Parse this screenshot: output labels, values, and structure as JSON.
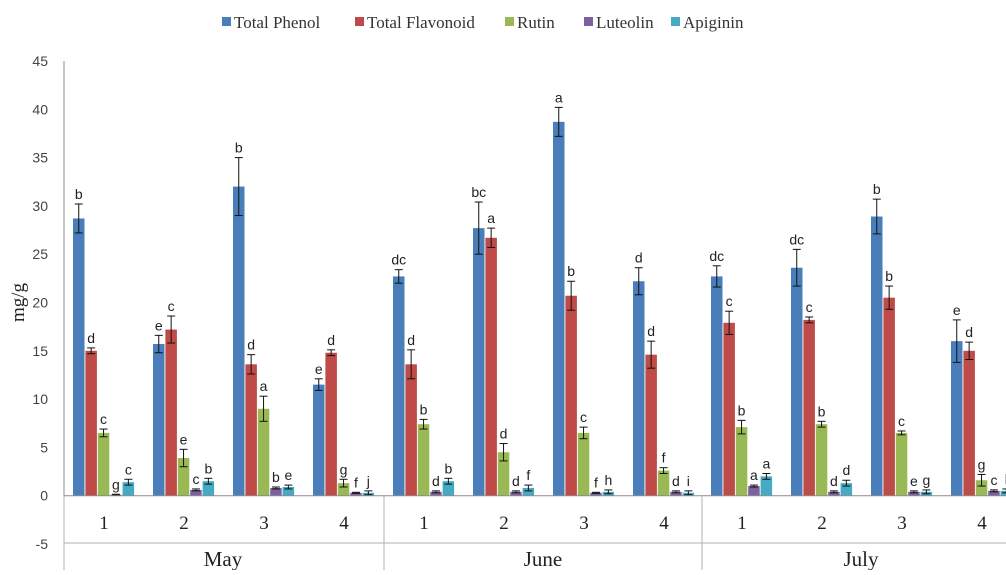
{
  "chart_data": {
    "type": "bar",
    "ylabel": "mg/g",
    "ylim": [
      -5,
      45
    ],
    "yticks": [
      -5,
      0,
      5,
      10,
      15,
      20,
      25,
      30,
      35,
      40,
      45
    ],
    "grid": false,
    "legend_position": "top",
    "groups": [
      {
        "label": "May",
        "categories": [
          "1",
          "2",
          "3",
          "4"
        ]
      },
      {
        "label": "June",
        "categories": [
          "1",
          "2",
          "3",
          "4"
        ]
      },
      {
        "label": "July",
        "categories": [
          "1",
          "2",
          "3",
          "4"
        ]
      }
    ],
    "series": [
      {
        "name": "Total Phenol",
        "color": "#4a7ebb",
        "values": [
          28.7,
          15.7,
          32.0,
          11.5,
          22.7,
          27.7,
          38.7,
          22.2,
          22.7,
          23.6,
          28.9,
          16.0
        ],
        "errors": [
          1.5,
          0.9,
          3.0,
          0.6,
          0.7,
          2.7,
          1.5,
          1.4,
          1.1,
          1.9,
          1.8,
          2.2
        ],
        "letters": [
          "b",
          "e",
          "b",
          "e",
          "dc",
          "bc",
          "a",
          "d",
          "dc",
          "dc",
          "b",
          "e"
        ]
      },
      {
        "name": "Total Flavonoid",
        "color": "#be4b48",
        "values": [
          15.0,
          17.2,
          13.6,
          14.8,
          13.6,
          26.7,
          20.7,
          14.6,
          17.9,
          18.2,
          20.5,
          15.0
        ],
        "errors": [
          0.3,
          1.4,
          1.0,
          0.3,
          1.5,
          1.0,
          1.5,
          1.4,
          1.2,
          0.3,
          1.2,
          0.9
        ],
        "letters": [
          "d",
          "c",
          "d",
          "d",
          "d",
          "a",
          "b",
          "d",
          "c",
          "c",
          "b",
          "d"
        ]
      },
      {
        "name": "Rutin",
        "color": "#98b954",
        "values": [
          6.5,
          3.9,
          9.0,
          1.3,
          7.4,
          4.5,
          6.5,
          2.6,
          7.1,
          7.4,
          6.5,
          1.6
        ],
        "errors": [
          0.4,
          0.9,
          1.3,
          0.4,
          0.5,
          0.9,
          0.6,
          0.3,
          0.7,
          0.3,
          0.2,
          0.6
        ],
        "letters": [
          "c",
          "e",
          "a",
          "g",
          "b",
          "d",
          "c",
          "f",
          "b",
          "b",
          "c",
          "g"
        ]
      },
      {
        "name": "Luteolin",
        "color": "#7d60a0",
        "values": [
          0.1,
          0.6,
          0.8,
          0.3,
          0.4,
          0.4,
          0.3,
          0.4,
          1.0,
          0.4,
          0.4,
          0.5
        ],
        "errors": [
          0.05,
          0.1,
          0.1,
          0.05,
          0.1,
          0.1,
          0.05,
          0.1,
          0.1,
          0.1,
          0.1,
          0.1
        ],
        "letters": [
          "g",
          "c",
          "b",
          "f",
          "d",
          "d",
          "f",
          "d",
          "a",
          "d",
          "e",
          "c"
        ]
      },
      {
        "name": "Apiginin",
        "color": "#46aac5",
        "values": [
          1.4,
          1.5,
          0.9,
          0.3,
          1.5,
          0.8,
          0.4,
          0.3,
          2.0,
          1.3,
          0.4,
          0.5
        ],
        "errors": [
          0.3,
          0.3,
          0.2,
          0.2,
          0.3,
          0.3,
          0.2,
          0.2,
          0.3,
          0.3,
          0.2,
          0.2
        ],
        "letters": [
          "c",
          "b",
          "e",
          "j",
          "b",
          "f",
          "h",
          "i",
          "a",
          "d",
          "g",
          "l"
        ]
      }
    ]
  }
}
